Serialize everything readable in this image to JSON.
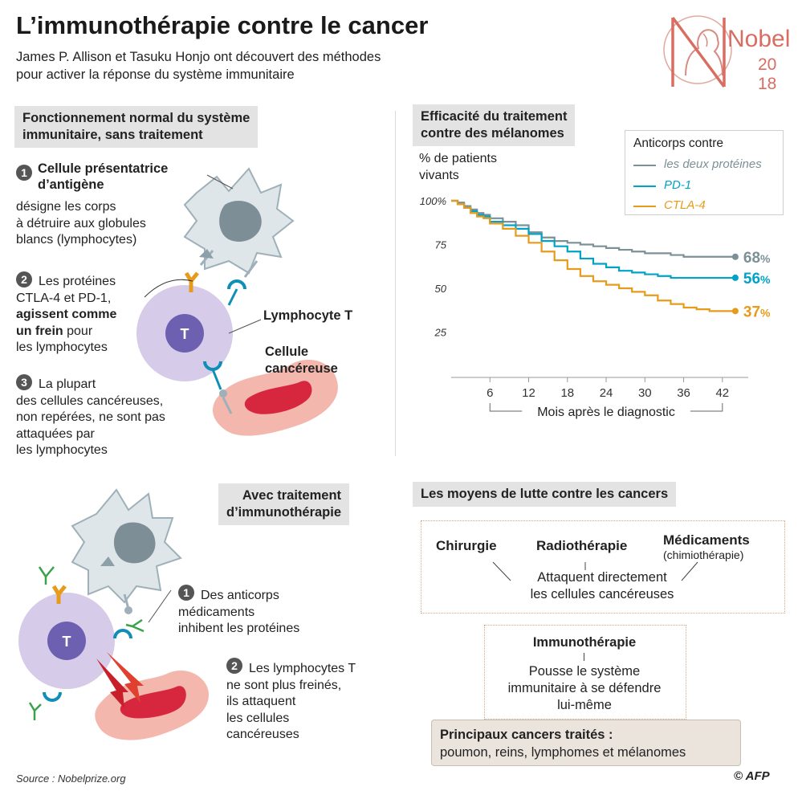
{
  "header": {
    "title": "L’immunothérapie contre le cancer",
    "subtitle_line1": "James P. Allison et Tasuku Honjo ont découvert des méthodes",
    "subtitle_line2": "pour activer la réponse du système immunitaire",
    "logo": {
      "word": "Nobel",
      "year_top": "20",
      "year_bottom": "18"
    }
  },
  "normal": {
    "heading_line1": "Fonctionnement normal du système",
    "heading_line2": "immunitaire, sans traitement",
    "step1": {
      "num": "1",
      "title_line1": "Cellule présentatrice",
      "title_line2": "d’antigène",
      "desc": [
        "désigne les corps",
        "à détruire aux globules",
        "blancs (lymphocytes)"
      ]
    },
    "step2": {
      "num": "2",
      "line1": "Les protéines",
      "line2": "CTLA-4 et PD-1,",
      "bold1": "agissent comme",
      "bold2": "un frein",
      "line3": " pour",
      "line4": "les lymphocytes"
    },
    "step3": {
      "num": "3",
      "lines": [
        "La plupart",
        "des cellules cancéreuses,",
        "non repérées, ne sont pas",
        "attaquées par",
        "les lymphocytes"
      ]
    },
    "tcell_letter": "T",
    "lymphocyte_label": "Lymphocyte T",
    "cancer_label_line1": "Cellule",
    "cancer_label_line2": "cancéreuse"
  },
  "treated": {
    "heading_line1": "Avec traitement",
    "heading_line2": "d’immunothérapie",
    "tcell_letter": "T",
    "step1": {
      "num": "1",
      "lines": [
        "Des anticorps",
        "médicaments",
        "inhibent les protéines"
      ]
    },
    "step2": {
      "num": "2",
      "lines": [
        "Les lymphocytes T",
        "ne sont plus freinés,",
        "ils attaquent",
        "les cellules",
        "cancéreuses"
      ]
    }
  },
  "chart_section": {
    "heading_line1": "Efficacité du traitement",
    "heading_line2": "contre des mélanomes"
  },
  "chart_data": {
    "type": "line",
    "ylabel_line1": "% de patients",
    "ylabel_line2": "vivants",
    "xlabel": "Mois après le diagnostic",
    "x_ticks": [
      "6",
      "12",
      "18",
      "24",
      "30",
      "36",
      "42"
    ],
    "y_ticks": [
      "100%",
      "75",
      "50",
      "25"
    ],
    "xlim": [
      0,
      46
    ],
    "ylim": [
      0,
      100
    ],
    "legend_title": "Anticorps contre",
    "legend_position": "top-right",
    "series": [
      {
        "name": "les deux protéines",
        "color": "#7b9097",
        "end_label": "68",
        "end_unit": "%",
        "points": [
          [
            0,
            100
          ],
          [
            1,
            99
          ],
          [
            2,
            97
          ],
          [
            3,
            95
          ],
          [
            4,
            93
          ],
          [
            5,
            92
          ],
          [
            6,
            90
          ],
          [
            8,
            88
          ],
          [
            10,
            86
          ],
          [
            12,
            82
          ],
          [
            14,
            79
          ],
          [
            16,
            77
          ],
          [
            18,
            76
          ],
          [
            20,
            75
          ],
          [
            22,
            74
          ],
          [
            24,
            73
          ],
          [
            26,
            72
          ],
          [
            28,
            71
          ],
          [
            30,
            70
          ],
          [
            32,
            70
          ],
          [
            34,
            69
          ],
          [
            36,
            68
          ],
          [
            38,
            68
          ],
          [
            40,
            68
          ],
          [
            42,
            68
          ],
          [
            44,
            68
          ]
        ]
      },
      {
        "name": "PD-1",
        "color": "#00a3c7",
        "end_label": "56",
        "end_unit": "%",
        "points": [
          [
            0,
            100
          ],
          [
            1,
            98
          ],
          [
            2,
            96
          ],
          [
            3,
            94
          ],
          [
            4,
            92
          ],
          [
            5,
            91
          ],
          [
            6,
            88
          ],
          [
            8,
            86
          ],
          [
            10,
            84
          ],
          [
            12,
            81
          ],
          [
            14,
            77
          ],
          [
            16,
            74
          ],
          [
            18,
            71
          ],
          [
            20,
            67
          ],
          [
            22,
            64
          ],
          [
            24,
            62
          ],
          [
            26,
            60
          ],
          [
            28,
            59
          ],
          [
            30,
            58
          ],
          [
            32,
            57
          ],
          [
            34,
            56
          ],
          [
            36,
            56
          ],
          [
            38,
            56
          ],
          [
            40,
            56
          ],
          [
            42,
            56
          ],
          [
            44,
            56
          ]
        ]
      },
      {
        "name": "CTLA-4",
        "color": "#e79b1b",
        "end_label": "37",
        "end_unit": "%",
        "points": [
          [
            0,
            100
          ],
          [
            1,
            98
          ],
          [
            2,
            96
          ],
          [
            3,
            93
          ],
          [
            4,
            91
          ],
          [
            5,
            90
          ],
          [
            6,
            87
          ],
          [
            8,
            84
          ],
          [
            10,
            80
          ],
          [
            12,
            76
          ],
          [
            14,
            71
          ],
          [
            16,
            66
          ],
          [
            18,
            61
          ],
          [
            20,
            57
          ],
          [
            22,
            54
          ],
          [
            24,
            52
          ],
          [
            26,
            50
          ],
          [
            28,
            48
          ],
          [
            30,
            46
          ],
          [
            32,
            43
          ],
          [
            34,
            41
          ],
          [
            36,
            39
          ],
          [
            38,
            38
          ],
          [
            40,
            37
          ],
          [
            42,
            37
          ],
          [
            44,
            37
          ]
        ]
      }
    ]
  },
  "means": {
    "heading": "Les moyens de lutte contre les cancers",
    "chirurgie": "Chirurgie",
    "radiotherapie": "Radiothérapie",
    "medicaments": "Médicaments",
    "chimio": "(chimiothérapie)",
    "attack_line1": "Attaquent directement",
    "attack_line2": "les cellules cancéreuses",
    "immuno_title": "Immunothérapie",
    "immuno_lines": [
      "Pousse le système",
      "immunitaire à se défendre",
      "lui-même"
    ],
    "principal_title": "Principaux cancers traités :",
    "principal_list": "poumon, reins, lymphomes et mélanomes"
  },
  "footer": {
    "source": "Source : Nobelprize.org",
    "credit": "© AFP"
  },
  "colors": {
    "cell_grey": "#dfe6ea",
    "tcell_outer": "#d6cbe8",
    "tcell_inner": "#6e60b1",
    "cancer": "#f3b7ad",
    "antibody_orange": "#e79b1b",
    "antibody_green": "#3aa24a",
    "receptor_blue": "#0f8fb6"
  }
}
